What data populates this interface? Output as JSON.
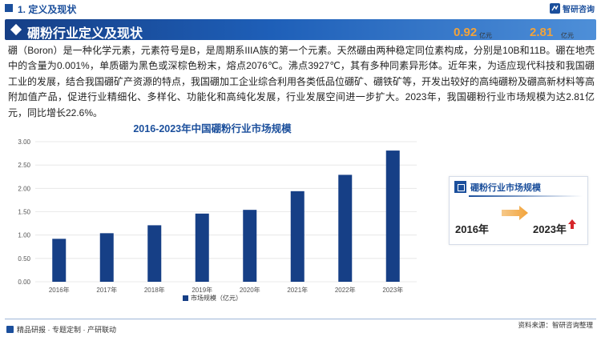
{
  "header": {
    "section": "1. 定义及现状",
    "logo_text": "智研咨询"
  },
  "title": "硼粉行业定义及现状",
  "intro": "硼（Boron）是一种化学元素，元素符号是B，是周期系IIIA族的第一个元素。天然硼由两种稳定同位素构成，分别是10B和11B。硼在地壳中的含量为0.001%，单质硼为黑色或深棕色粉末，熔点2076℃。沸点3927℃，其有多种同素异形体。近年来，为适应现代科技和我国硼工业的发展，结合我国硼矿产资源的特点，我国硼加工企业综合利用各类低品位硼矿、硼铁矿等，开发出较好的高纯硼粉及硼高新材料等高附加值产品，促进行业精细化、多样化、功能化和高纯化发展，行业发展空间进一步扩大。2023年，我国硼粉行业市场规模为达2.81亿元，同比增长22.6%。",
  "chart_data": {
    "type": "bar",
    "title": "2016-2023年中国硼粉行业市场规模",
    "categories": [
      "2016年",
      "2017年",
      "2018年",
      "2019年",
      "2020年",
      "2021年",
      "2022年",
      "2023年"
    ],
    "series": [
      {
        "name": "市场规模（亿元）",
        "values": [
          0.92,
          1.04,
          1.21,
          1.46,
          1.54,
          1.94,
          2.29,
          2.81
        ]
      }
    ],
    "ylim": [
      0,
      3.0
    ],
    "yticks": [
      "0.00",
      "0.50",
      "1.00",
      "1.50",
      "2.00",
      "2.50",
      "3.00"
    ],
    "xlabel": "",
    "ylabel": "",
    "grid": true,
    "legend": "bottom-center",
    "bar_color": "#163f86"
  },
  "card": {
    "title": "硼粉行业市场规模",
    "start_value": "0.92",
    "start_unit": "亿元",
    "start_year": "2016年",
    "end_value": "2.81",
    "end_unit": "亿元",
    "end_year": "2023年"
  },
  "footer": {
    "left": "精品研报 · 专题定制 · 产研联动",
    "right": "资料来源：智研咨询整理"
  },
  "colors": {
    "brand": "#1b4f9c",
    "accent_value": "#f2a33a",
    "up_arrow": "#d6262b"
  }
}
